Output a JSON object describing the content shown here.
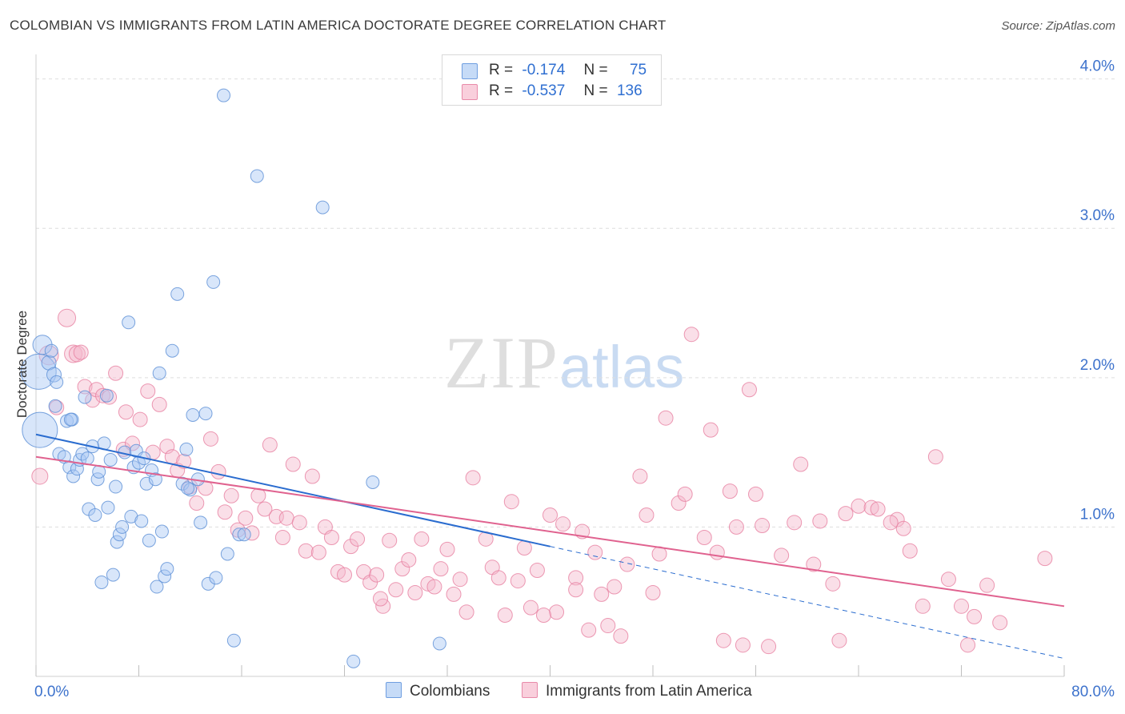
{
  "title": "COLOMBIAN VS IMMIGRANTS FROM LATIN AMERICA DOCTORATE DEGREE CORRELATION CHART",
  "source": "Source: ZipAtlas.com",
  "watermark": {
    "zip": "ZIP",
    "atlas": "atlas"
  },
  "legend": {
    "rows": [
      {
        "r_label": "R =",
        "r_value": "-0.174",
        "n_label": "N =",
        "n_value": "75",
        "color": "#a8c8f5"
      },
      {
        "r_label": "R =",
        "r_value": "-0.537",
        "n_label": "N =",
        "n_value": "136",
        "color": "#f5b8cb"
      }
    ]
  },
  "bottom_legend": [
    {
      "label": "Colombians",
      "color": "#a8c8f5"
    },
    {
      "label": "Immigrants from Latin America",
      "color": "#f5b8cb"
    }
  ],
  "colors": {
    "blue_stroke": "#5b8fd6",
    "blue_fill": "#a8c8f5",
    "pink_stroke": "#e77fa0",
    "pink_fill": "#f5b8cb",
    "blue_line": "#2a6ccf",
    "pink_line": "#e0628f",
    "axis_text": "#3d72cc",
    "grid": "#dedede"
  },
  "chart_data": {
    "type": "scatter",
    "title": "COLOMBIAN VS IMMIGRANTS FROM LATIN AMERICA DOCTORATE DEGREE CORRELATION CHART",
    "xlabel": "",
    "ylabel": "Doctorate Degree",
    "xlim": [
      0,
      80
    ],
    "ylim": [
      0,
      4.1
    ],
    "x_tick_labels": [
      "0.0%",
      "80.0%"
    ],
    "y_ticks": [
      1.0,
      2.0,
      3.0,
      4.0
    ],
    "y_tick_labels": [
      "1.0%",
      "2.0%",
      "3.0%",
      "4.0%"
    ],
    "grid": true,
    "legend_position": "top-center",
    "series": [
      {
        "name": "Colombians",
        "color": "#a8c8f5",
        "trend": {
          "x": [
            0,
            40
          ],
          "y": [
            1.62,
            0.87
          ],
          "dashed_extension_to": [
            80,
            0.12
          ]
        },
        "points": [
          [
            0.2,
            2.04,
            22
          ],
          [
            0.3,
            1.65,
            22
          ],
          [
            0.5,
            2.22,
            12
          ],
          [
            1,
            2.1,
            9
          ],
          [
            1.2,
            2.18,
            8
          ],
          [
            1.4,
            2.02,
            9
          ],
          [
            1.5,
            1.81,
            8
          ],
          [
            1.6,
            1.97,
            8
          ],
          [
            1.8,
            1.49,
            8
          ],
          [
            2.2,
            1.47,
            8
          ],
          [
            2.4,
            1.71,
            8
          ],
          [
            2.6,
            1.4,
            8
          ],
          [
            2.8,
            1.72,
            8
          ],
          [
            2.9,
            1.34,
            8
          ],
          [
            3.2,
            1.39,
            8
          ],
          [
            3.4,
            1.45,
            8
          ],
          [
            3.6,
            1.49,
            8
          ],
          [
            3.8,
            1.87,
            8
          ],
          [
            4,
            1.46,
            8
          ],
          [
            4.1,
            1.12,
            8
          ],
          [
            4.4,
            1.54,
            8
          ],
          [
            4.6,
            1.08,
            8
          ],
          [
            4.8,
            1.32,
            8
          ],
          [
            4.9,
            1.37,
            8
          ],
          [
            5.1,
            0.63,
            8
          ],
          [
            5.3,
            1.56,
            8
          ],
          [
            5.5,
            1.88,
            8
          ],
          [
            5.6,
            1.13,
            8
          ],
          [
            5.8,
            1.45,
            8
          ],
          [
            6,
            0.68,
            8
          ],
          [
            6.2,
            1.27,
            8
          ],
          [
            6.3,
            0.9,
            8
          ],
          [
            6.5,
            0.95,
            8
          ],
          [
            6.7,
            1.0,
            8
          ],
          [
            6.9,
            1.5,
            8
          ],
          [
            7.2,
            2.37,
            8
          ],
          [
            7.4,
            1.07,
            8
          ],
          [
            7.6,
            1.4,
            8
          ],
          [
            7.8,
            1.51,
            8
          ],
          [
            8,
            1.43,
            8
          ],
          [
            8.2,
            1.04,
            8
          ],
          [
            8.4,
            1.46,
            8
          ],
          [
            8.6,
            1.29,
            8
          ],
          [
            8.8,
            0.91,
            8
          ],
          [
            9,
            1.38,
            8
          ],
          [
            9.3,
            1.32,
            8
          ],
          [
            9.6,
            2.03,
            8
          ],
          [
            9.8,
            0.97,
            8
          ],
          [
            10.0,
            0.67,
            8
          ],
          [
            10.2,
            0.72,
            8
          ],
          [
            10.6,
            2.18,
            8
          ],
          [
            11,
            2.56,
            8
          ],
          [
            11.4,
            1.29,
            8
          ],
          [
            11.7,
            1.52,
            8
          ],
          [
            12,
            1.25,
            8
          ],
          [
            12.2,
            1.75,
            8
          ],
          [
            12.6,
            1.32,
            8
          ],
          [
            12.8,
            1.03,
            8
          ],
          [
            13.2,
            1.76,
            8
          ],
          [
            13.4,
            0.62,
            8
          ],
          [
            13.8,
            2.64,
            8
          ],
          [
            14,
            0.66,
            8
          ],
          [
            14.6,
            3.89,
            8
          ],
          [
            14.9,
            0.82,
            8
          ],
          [
            15.4,
            0.24,
            8
          ],
          [
            15.8,
            0.95,
            8
          ],
          [
            17.2,
            3.35,
            8
          ],
          [
            22.3,
            3.14,
            8
          ],
          [
            24.7,
            0.1,
            8
          ],
          [
            26.2,
            1.3,
            8
          ],
          [
            31.4,
            0.22,
            8
          ],
          [
            16.2,
            0.95,
            8
          ],
          [
            9.4,
            0.6,
            8
          ],
          [
            2.7,
            1.72,
            8
          ],
          [
            11.8,
            1.26,
            8
          ]
        ]
      },
      {
        "name": "Immigrants from Latin America",
        "color": "#f5b8cb",
        "trend": {
          "x": [
            0,
            80
          ],
          "y": [
            1.47,
            0.47
          ]
        },
        "points": [
          [
            0.3,
            1.34,
            10
          ],
          [
            1,
            2.15,
            12
          ],
          [
            1.6,
            1.8,
            9
          ],
          [
            2.4,
            2.4,
            11
          ],
          [
            2.9,
            2.16,
            11
          ],
          [
            3.2,
            2.16,
            10
          ],
          [
            3.5,
            2.17,
            9
          ],
          [
            3.8,
            1.94,
            9
          ],
          [
            4.4,
            1.85,
            9
          ],
          [
            4.7,
            1.92,
            9
          ],
          [
            5.2,
            1.88,
            9
          ],
          [
            5.7,
            1.87,
            9
          ],
          [
            6.2,
            2.03,
            9
          ],
          [
            6.8,
            1.52,
            9
          ],
          [
            7,
            1.77,
            9
          ],
          [
            7.5,
            1.56,
            9
          ],
          [
            8.1,
            1.72,
            9
          ],
          [
            8.7,
            1.91,
            9
          ],
          [
            9.1,
            1.5,
            9
          ],
          [
            9.6,
            1.82,
            9
          ],
          [
            10.2,
            1.54,
            9
          ],
          [
            10.6,
            1.47,
            9
          ],
          [
            11,
            1.38,
            9
          ],
          [
            11.5,
            1.44,
            9
          ],
          [
            12,
            1.27,
            9
          ],
          [
            12.5,
            1.16,
            9
          ],
          [
            13.2,
            1.26,
            9
          ],
          [
            13.6,
            1.59,
            9
          ],
          [
            14.2,
            1.37,
            9
          ],
          [
            14.7,
            1.1,
            9
          ],
          [
            15.2,
            1.21,
            9
          ],
          [
            15.7,
            0.98,
            9
          ],
          [
            16.3,
            1.06,
            9
          ],
          [
            16.8,
            0.96,
            9
          ],
          [
            17.3,
            1.21,
            9
          ],
          [
            17.8,
            1.12,
            9
          ],
          [
            18.2,
            1.55,
            9
          ],
          [
            18.7,
            1.07,
            9
          ],
          [
            19.2,
            0.93,
            9
          ],
          [
            19.5,
            1.06,
            9
          ],
          [
            20,
            1.42,
            9
          ],
          [
            20.5,
            1.03,
            9
          ],
          [
            21,
            0.84,
            9
          ],
          [
            21.5,
            1.34,
            9
          ],
          [
            22,
            0.83,
            9
          ],
          [
            22.5,
            1.0,
            9
          ],
          [
            23,
            0.93,
            9
          ],
          [
            23.5,
            0.7,
            9
          ],
          [
            24,
            0.68,
            9
          ],
          [
            24.5,
            0.87,
            9
          ],
          [
            25,
            0.92,
            9
          ],
          [
            25.5,
            0.7,
            9
          ],
          [
            26,
            0.63,
            9
          ],
          [
            26.5,
            0.68,
            9
          ],
          [
            27,
            0.47,
            9
          ],
          [
            27.5,
            0.91,
            9
          ],
          [
            28,
            0.58,
            9
          ],
          [
            28.5,
            0.72,
            9
          ],
          [
            29,
            0.78,
            9
          ],
          [
            29.5,
            0.56,
            9
          ],
          [
            30,
            0.92,
            9
          ],
          [
            30.5,
            0.62,
            9
          ],
          [
            31,
            0.6,
            9
          ],
          [
            31.5,
            0.72,
            9
          ],
          [
            32,
            0.85,
            9
          ],
          [
            32.5,
            0.55,
            9
          ],
          [
            33,
            0.65,
            9
          ],
          [
            34,
            1.33,
            9
          ],
          [
            35,
            0.92,
            9
          ],
          [
            35.5,
            0.73,
            9
          ],
          [
            36,
            0.66,
            9
          ],
          [
            36.5,
            0.41,
            9
          ],
          [
            37,
            1.17,
            9
          ],
          [
            37.5,
            0.64,
            9
          ],
          [
            38,
            0.86,
            9
          ],
          [
            38.5,
            0.46,
            9
          ],
          [
            39,
            0.71,
            9
          ],
          [
            40,
            1.08,
            9
          ],
          [
            40.5,
            0.43,
            9
          ],
          [
            41,
            1.02,
            9
          ],
          [
            42,
            0.66,
            9
          ],
          [
            42.5,
            0.97,
            9
          ],
          [
            43,
            0.31,
            9
          ],
          [
            43.5,
            0.83,
            9
          ],
          [
            44,
            0.55,
            9
          ],
          [
            45,
            0.6,
            9
          ],
          [
            45.5,
            0.27,
            9
          ],
          [
            46,
            0.75,
            9
          ],
          [
            47,
            1.34,
            9
          ],
          [
            47.5,
            1.08,
            9
          ],
          [
            48,
            0.56,
            9
          ],
          [
            48.5,
            0.82,
            9
          ],
          [
            49,
            1.73,
            9
          ],
          [
            50,
            1.16,
            9
          ],
          [
            50.5,
            1.22,
            9
          ],
          [
            51,
            2.29,
            9
          ],
          [
            52,
            0.93,
            9
          ],
          [
            52.5,
            1.65,
            9
          ],
          [
            53,
            0.83,
            9
          ],
          [
            54,
            1.24,
            9
          ],
          [
            54.5,
            1.0,
            9
          ],
          [
            55,
            0.21,
            9
          ],
          [
            55.5,
            1.92,
            9
          ],
          [
            56,
            1.22,
            9
          ],
          [
            56.5,
            1.01,
            9
          ],
          [
            58,
            0.81,
            9
          ],
          [
            59,
            1.03,
            9
          ],
          [
            59.5,
            1.42,
            9
          ],
          [
            60.5,
            0.75,
            9
          ],
          [
            61,
            1.04,
            9
          ],
          [
            62,
            0.62,
            9
          ],
          [
            62.5,
            0.24,
            9
          ],
          [
            63,
            1.09,
            9
          ],
          [
            64,
            1.14,
            9
          ],
          [
            65,
            1.13,
            9
          ],
          [
            65.5,
            1.12,
            9
          ],
          [
            67,
            1.05,
            9
          ],
          [
            67.5,
            0.99,
            9
          ],
          [
            68,
            0.84,
            9
          ],
          [
            69,
            0.47,
            9
          ],
          [
            70,
            1.47,
            9
          ],
          [
            71,
            0.65,
            9
          ],
          [
            72,
            0.47,
            9
          ],
          [
            72.5,
            0.21,
            9
          ],
          [
            73,
            0.4,
            9
          ],
          [
            74,
            0.61,
            9
          ],
          [
            75,
            0.36,
            9
          ],
          [
            78.5,
            0.79,
            9
          ],
          [
            39.5,
            0.41,
            9
          ],
          [
            53.5,
            0.24,
            9
          ],
          [
            57,
            0.2,
            9
          ],
          [
            66.5,
            1.03,
            9
          ],
          [
            42,
            0.58,
            9
          ],
          [
            44.5,
            0.34,
            9
          ],
          [
            33.5,
            0.43,
            9
          ],
          [
            26.8,
            0.52,
            9
          ]
        ]
      }
    ]
  }
}
